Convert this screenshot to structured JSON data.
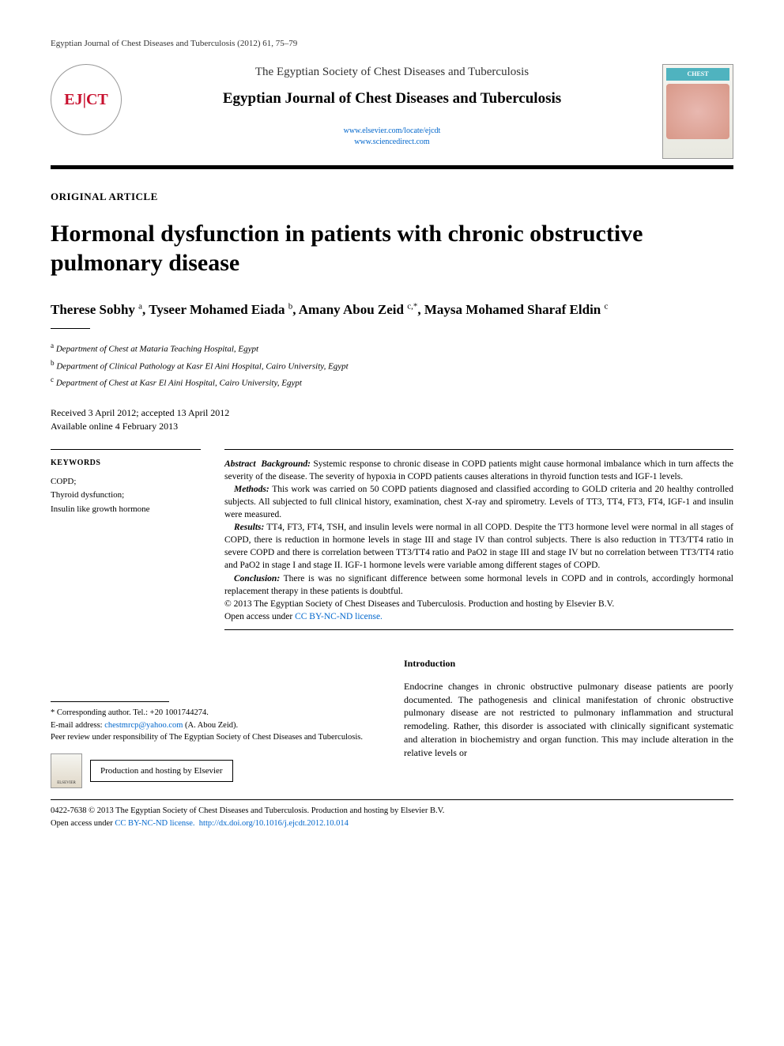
{
  "running_header": "Egyptian Journal of Chest Diseases and Tuberculosis (2012) 61, 75–79",
  "masthead": {
    "logo_text": "EJ|CT",
    "society": "The Egyptian Society of Chest Diseases and Tuberculosis",
    "journal": "Egyptian Journal of Chest Diseases and Tuberculosis",
    "link1": "www.elsevier.com/locate/ejcdt",
    "link2": "www.sciencedirect.com",
    "cover_title": "CHEST"
  },
  "article": {
    "type": "ORIGINAL ARTICLE",
    "title": "Hormonal dysfunction in patients with chronic obstructive pulmonary disease",
    "authors_html": "Therese Sobhy <sup>a</sup>, Tyseer Mohamed Eiada <sup>b</sup>, Amany Abou Zeid <sup>c,*</sup>, Maysa Mohamed Sharaf Eldin <sup>c</sup>",
    "affiliations": {
      "a": "Department of Chest at Mataria Teaching Hospital, Egypt",
      "b": "Department of Clinical Pathology at Kasr El Aini Hospital, Cairo University, Egypt",
      "c": "Department of Chest at Kasr El Aini Hospital, Cairo University, Egypt"
    },
    "dates": {
      "received_accepted": "Received 3 April 2012; accepted 13 April 2012",
      "online": "Available online 4 February 2013"
    }
  },
  "keywords": {
    "heading": "KEYWORDS",
    "items": "COPD;\nThyroid dysfunction;\nInsulin like growth hormone"
  },
  "abstract": {
    "label": "Abstract",
    "background_lbl": "Background:",
    "background": "Systemic response to chronic disease in COPD patients might cause hormonal imbalance which in turn affects the severity of the disease. The severity of hypoxia in COPD patients causes alterations in thyroid function tests and IGF-1 levels.",
    "methods_lbl": "Methods:",
    "methods": "This work was carried on 50 COPD patients diagnosed and classified according to GOLD criteria and 20 healthy controlled subjects. All subjected to full clinical history, examination, chest X-ray and spirometry. Levels of TT3, TT4, FT3, FT4, IGF-1 and insulin were measured.",
    "results_lbl": "Results:",
    "results": "TT4, FT3, FT4, TSH, and insulin levels were normal in all COPD. Despite the TT3 hormone level were normal in all stages of COPD, there is reduction in hormone levels in stage III and stage IV than control subjects. There is also reduction in TT3/TT4 ratio in severe COPD and there is correlation between TT3/TT4 ratio and PaO2 in stage III and stage IV but no correlation between TT3/TT4 ratio and PaO2 in stage I and stage II. IGF-1 hormone levels were variable among different stages of COPD.",
    "conclusion_lbl": "Conclusion:",
    "conclusion": "There is was no significant difference between some hormonal levels in COPD and in controls, accordingly hormonal replacement therapy in these patients is doubtful.",
    "copyright": "© 2013 The Egyptian Society of Chest Diseases and Tuberculosis. Production and hosting by Elsevier B.V.",
    "license_prefix": "Open access under ",
    "license_link": "CC BY-NC-ND license."
  },
  "correspondence": {
    "line1": "* Corresponding author. Tel.: +20 1001744274.",
    "email_label": "E-mail address: ",
    "email": "chestmrcp@yahoo.com",
    "email_suffix": " (A. Abou Zeid).",
    "peer_review": "Peer review under responsibility of The Egyptian Society of Chest Diseases and Tuberculosis.",
    "production": "Production and hosting by Elsevier",
    "elsevier_label": "ELSEVIER"
  },
  "intro": {
    "heading": "Introduction",
    "text": "Endocrine changes in chronic obstructive pulmonary disease patients are poorly documented. The pathogenesis and clinical manifestation of chronic obstructive pulmonary disease are not restricted to pulmonary inflammation and structural remodeling. Rather, this disorder is associated with clinically significant systematic and alteration in biochemistry and organ function. This may include alteration in the relative levels or"
  },
  "footer": {
    "issn_copyright": "0422-7638 © 2013 The Egyptian Society of Chest Diseases and Tuberculosis. Production and hosting by Elsevier B.V.",
    "license_prefix": "Open access under ",
    "license_link": "CC BY-NC-ND license.",
    "doi": "http://dx.doi.org/10.1016/j.ejcdt.2012.10.014"
  },
  "colors": {
    "link": "#0066cc",
    "logo_red": "#c8102e",
    "rule": "#000000"
  }
}
